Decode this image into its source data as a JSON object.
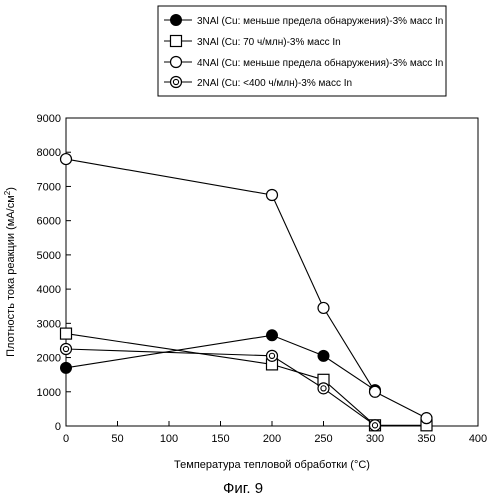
{
  "chart_data": {
    "type": "line",
    "x": [
      0,
      200,
      250,
      300,
      350
    ],
    "series": [
      {
        "name": "3NAl (Cu: меньше предела обнаружения)-3% масс In",
        "marker": "filled-circle",
        "x": [
          0,
          200,
          250,
          300
        ],
        "values": [
          1700,
          2650,
          2050,
          1050
        ]
      },
      {
        "name": "3NAl (Cu: 70 ч/млн)-3% масс In",
        "marker": "square",
        "x": [
          0,
          200,
          250,
          300,
          350
        ],
        "values": [
          2700,
          1800,
          1350,
          20,
          20
        ]
      },
      {
        "name": "4NAl (Cu: меньше предела обнаружения)-3% масс In",
        "marker": "open-circle",
        "x": [
          0,
          200,
          250,
          300,
          350
        ],
        "values": [
          7800,
          6750,
          3450,
          1000,
          230
        ]
      },
      {
        "name": "2NAl (Cu: <400 ч/млн)-3% масс In",
        "marker": "double-circle",
        "x": [
          0,
          200,
          250,
          300
        ],
        "values": [
          2250,
          2050,
          1100,
          20
        ]
      }
    ],
    "xlabel_main": "Температура тепловой обработки (",
    "xlabel_unit": "°C",
    "xlabel_close": ")",
    "ylabel_main": "Плотность тока реакции (мА/см",
    "ylabel_sup": "2",
    "ylabel_close": ")",
    "xlim": [
      0,
      400
    ],
    "ylim": [
      0,
      9000
    ],
    "xticks": [
      0,
      50,
      100,
      150,
      200,
      250,
      300,
      350,
      400
    ],
    "yticks": [
      0,
      1000,
      2000,
      3000,
      4000,
      5000,
      6000,
      7000,
      8000,
      9000
    ],
    "legend_position": "top-center",
    "grid": false,
    "caption": "Фиг. 9"
  }
}
